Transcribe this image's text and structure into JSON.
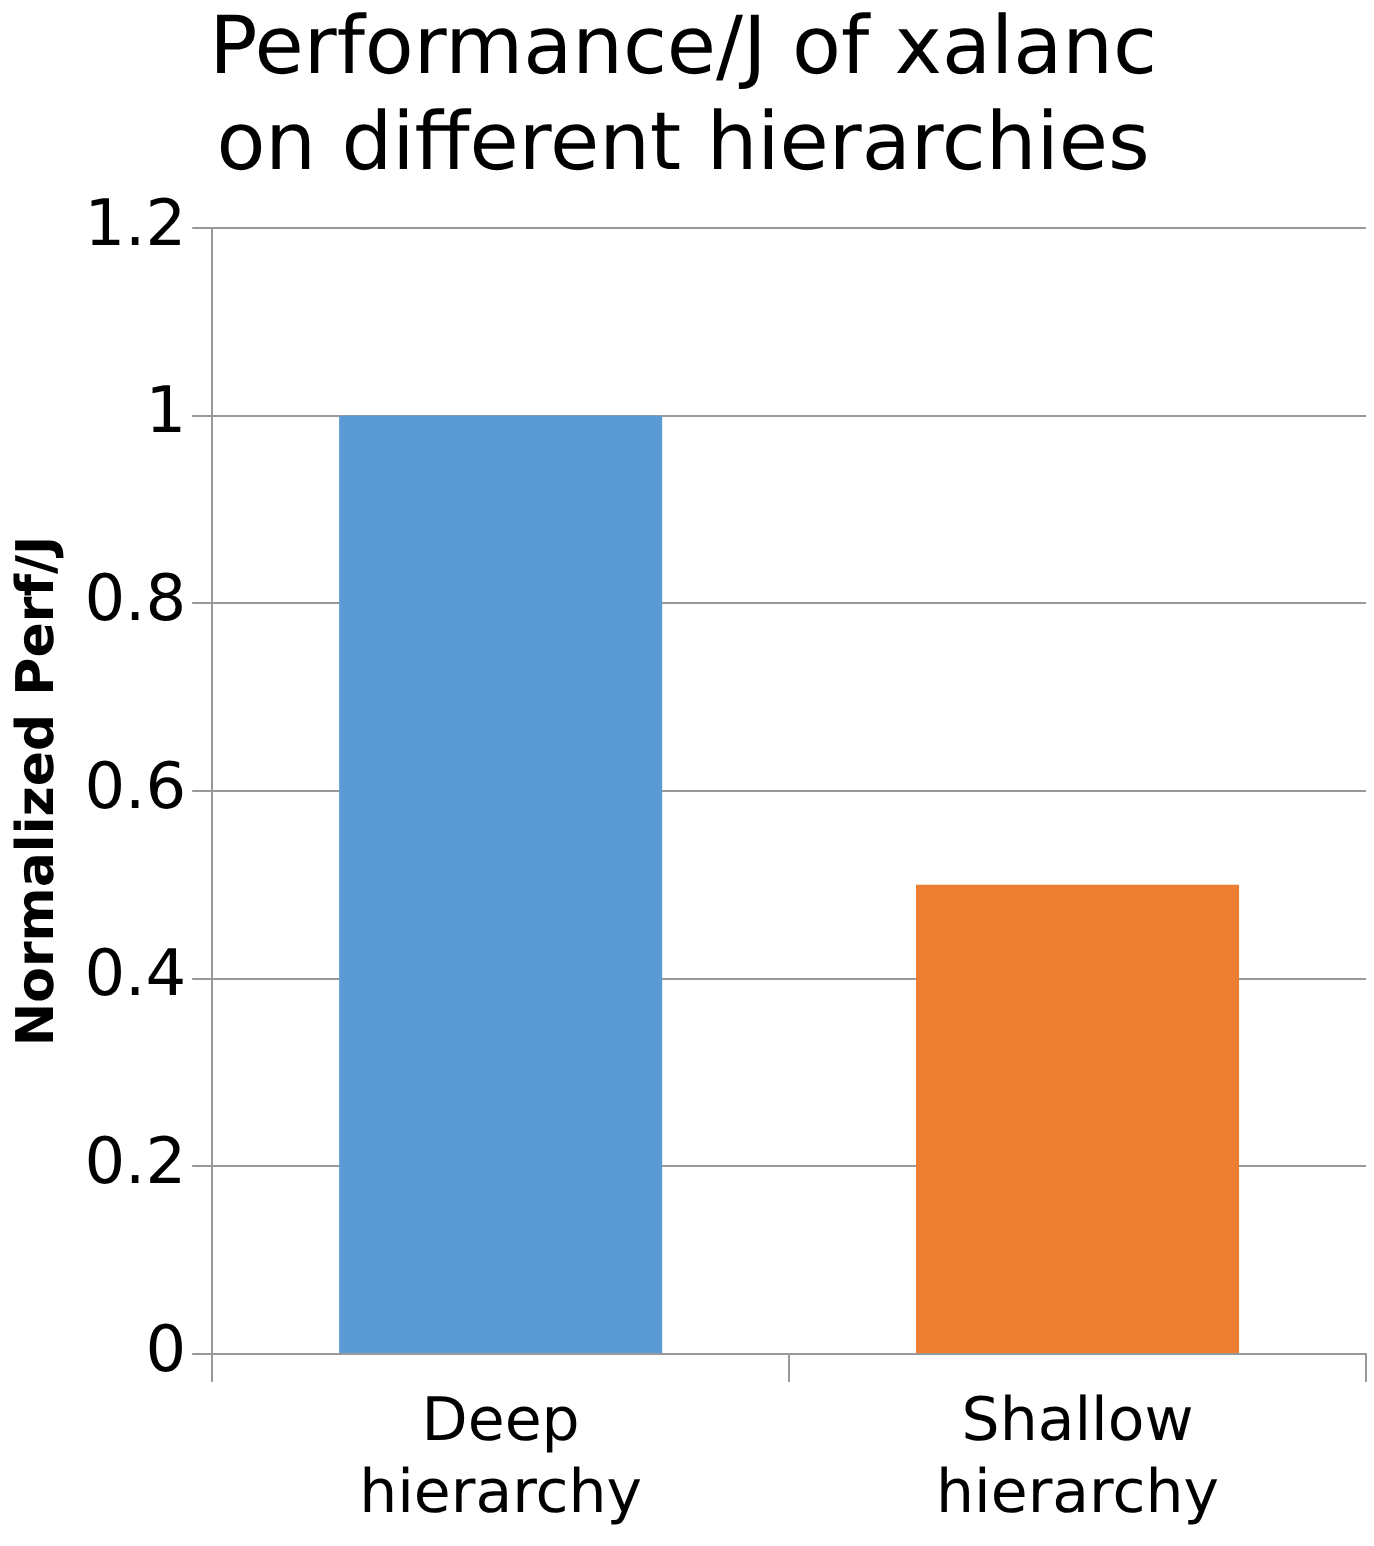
{
  "chart_data": {
    "type": "bar",
    "title": "Performance/J of xalanc\non different hierarchies",
    "ylabel": "Normalized Perf/J",
    "categories": [
      "Deep\nhierarchy",
      "Shallow\nhierarchy"
    ],
    "values": [
      1,
      0.5
    ],
    "colors": [
      "#5b9bd5",
      "#ed7d31"
    ],
    "ylim": [
      0,
      1.2
    ],
    "yticks": [
      0,
      0.2,
      0.4,
      0.6,
      0.8,
      1,
      1.2
    ],
    "grid": "y",
    "legend": false
  }
}
